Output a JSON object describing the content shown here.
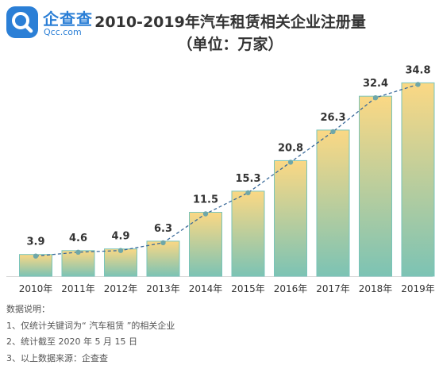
{
  "logo": {
    "name": "企查查",
    "domain": "Qcc.com"
  },
  "chart_data": {
    "type": "bar",
    "title": "2010-2019年汽车租赁相关企业注册量",
    "subtitle": "（单位：万家）",
    "categories": [
      "2010年",
      "2011年",
      "2012年",
      "2013年",
      "2014年",
      "2015年",
      "2016年",
      "2017年",
      "2018年",
      "2019年"
    ],
    "values": [
      3.9,
      4.6,
      4.9,
      6.3,
      11.5,
      15.3,
      20.8,
      26.3,
      32.4,
      34.8
    ],
    "value_labels": [
      "3.9",
      "4.6",
      "4.9",
      "6.3",
      "11.5",
      "15.3",
      "20.8",
      "26.3",
      "32.4",
      "34.8"
    ],
    "trend_line": "dashed",
    "ylim": [
      0,
      36
    ],
    "grid": false,
    "colors": {
      "bar_top": "#fbd884",
      "bar_bottom": "#7cc3b4",
      "bar_border": "#78c4bb",
      "trend": "#3a6a9a",
      "point": "#6fa7a8"
    }
  },
  "notes": {
    "heading": "数据说明：",
    "items": [
      "1、仅统计关键词为“ 汽车租赁 ”的相关企业",
      "2、统计截至 2020 年 5 月 15 日",
      "3、以上数据来源：企查查"
    ]
  }
}
